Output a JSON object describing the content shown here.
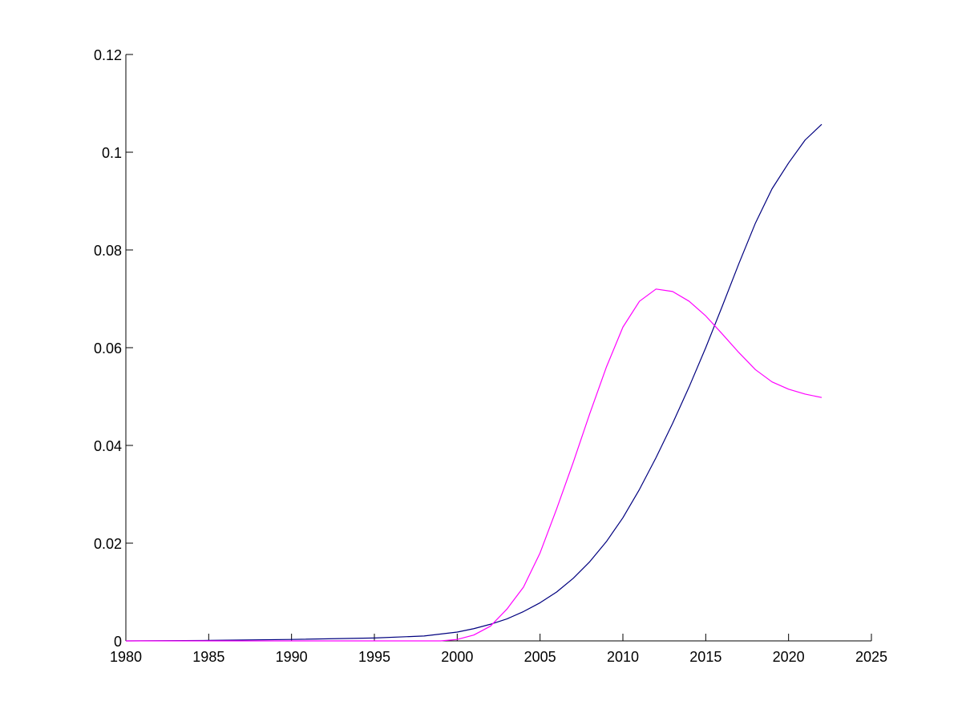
{
  "chart_data": {
    "type": "line",
    "title": "",
    "xlabel": "",
    "ylabel": "",
    "xlim": [
      1980,
      2025
    ],
    "ylim": [
      0,
      0.12
    ],
    "x_ticks": [
      "1980",
      "1985",
      "1990",
      "1995",
      "2000",
      "2005",
      "2010",
      "2015",
      "2020",
      "2025"
    ],
    "y_ticks": [
      "0",
      "0.02",
      "0.04",
      "0.06",
      "0.08",
      "0.1",
      "0.12"
    ],
    "grid": false,
    "legend": "none",
    "series": [
      {
        "color": "#00007f",
        "x": [
          1980,
          1985,
          1990,
          1995,
          1998,
          2000,
          2001,
          2002,
          2003,
          2004,
          2005,
          2006,
          2007,
          2008,
          2009,
          2010,
          2011,
          2012,
          2013,
          2014,
          2015,
          2016,
          2017,
          2018,
          2019,
          2020,
          2021,
          2022
        ],
        "y": [
          0,
          0.0001,
          0.0003,
          0.0006,
          0.001,
          0.0018,
          0.0025,
          0.0034,
          0.0045,
          0.006,
          0.0078,
          0.01,
          0.0128,
          0.0162,
          0.0203,
          0.0252,
          0.031,
          0.0375,
          0.0445,
          0.052,
          0.06,
          0.0685,
          0.0772,
          0.0855,
          0.0925,
          0.0978,
          0.1025,
          0.1057
        ]
      },
      {
        "color": "#ff00ff",
        "x": [
          1980,
          1985,
          1990,
          1995,
          1999,
          2000,
          2001,
          2002,
          2003,
          2004,
          2005,
          2006,
          2007,
          2008,
          2009,
          2010,
          2011,
          2012,
          2013,
          2014,
          2015,
          2016,
          2017,
          2018,
          2019,
          2020,
          2021,
          2022
        ],
        "y": [
          0,
          0,
          0,
          0,
          0,
          0.0003,
          0.0012,
          0.003,
          0.0065,
          0.011,
          0.018,
          0.027,
          0.0365,
          0.0465,
          0.056,
          0.0642,
          0.0695,
          0.072,
          0.0715,
          0.0695,
          0.0665,
          0.0628,
          0.059,
          0.0555,
          0.053,
          0.0515,
          0.0505,
          0.0498
        ]
      }
    ]
  }
}
